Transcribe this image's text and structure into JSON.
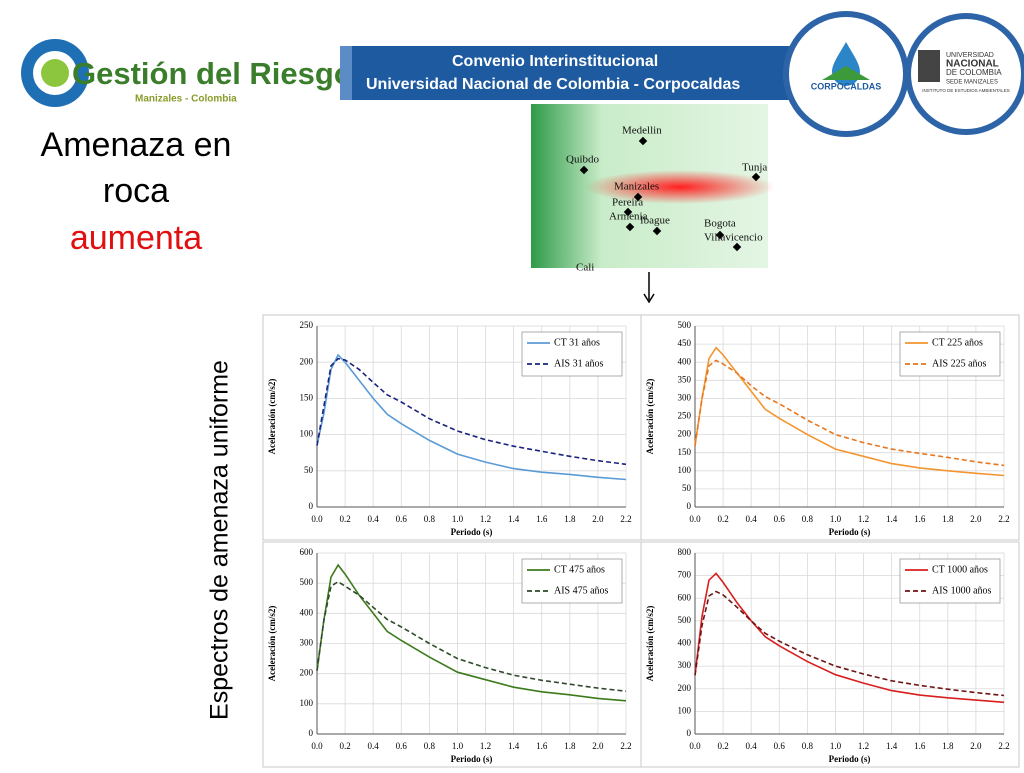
{
  "header": {
    "logo_title": "Gestión del Riesgo",
    "logo_subtitle": "Manizales - Colombia",
    "banner_line1": "Convenio Interinstitucional",
    "banner_line2": "Universidad Nacional de Colombia - Corpocaldas",
    "corpocaldas": "CORPOCALDAS",
    "unal_line1": "UNIVERSIDAD",
    "unal_line2": "NACIONAL",
    "unal_line3": "DE COLOMBIA",
    "unal_line4": "SEDE MANIZALES",
    "unal_line5": "INSTITUTO DE ESTUDIOS AMBIENTALES"
  },
  "slide": {
    "heading_line1": "Amenaza en",
    "heading_line2": "roca",
    "heading_line3": "aumenta",
    "vertical_label": "Espectros de amenaza uniforme"
  },
  "map": {
    "labels": [
      "Medellin",
      "Quibdo",
      "Tunja",
      "Manizales",
      "Pereira",
      "Armenia",
      "Ibague",
      "Bogota",
      "Villavicencio",
      "Cali"
    ]
  },
  "chart_data": [
    {
      "type": "line",
      "xlabel": "Periodo (s)",
      "ylabel": "Aceleración (cm/s2)",
      "x": [
        0,
        0.05,
        0.1,
        0.15,
        0.2,
        0.3,
        0.4,
        0.5,
        0.6,
        0.8,
        1.0,
        1.2,
        1.4,
        1.6,
        1.8,
        2.0,
        2.2
      ],
      "series": [
        {
          "name": "CT 31 años",
          "color": "#5b9bd5",
          "linestyle": "solid",
          "values": [
            85,
            130,
            190,
            210,
            200,
            175,
            150,
            128,
            115,
            92,
            73,
            62,
            53,
            48,
            45,
            41,
            38
          ]
        },
        {
          "name": "AIS 31 años",
          "color": "#1a237e",
          "linestyle": "dashed",
          "values": [
            85,
            140,
            195,
            205,
            203,
            190,
            172,
            155,
            145,
            122,
            105,
            93,
            84,
            77,
            70,
            64,
            59
          ]
        }
      ],
      "xlim": [
        0,
        2.2
      ],
      "xticks": [
        {
          "value": 0,
          "label": "0.0"
        },
        0.2,
        0.4,
        0.6,
        0.8,
        {
          "value": 1,
          "label": "1.0"
        },
        1.2,
        1.4,
        1.6,
        1.8,
        {
          "value": 2,
          "label": "2.0"
        },
        2.2
      ],
      "ylim": [
        0,
        250
      ],
      "yticks": [
        0,
        50,
        100,
        150,
        200,
        250
      ],
      "grid": true,
      "legend": "upper right"
    },
    {
      "type": "line",
      "xlabel": "Periodo (s)",
      "ylabel": "Aceleración (cm/s2)",
      "x": [
        0,
        0.05,
        0.1,
        0.15,
        0.2,
        0.3,
        0.4,
        0.5,
        0.6,
        0.8,
        1.0,
        1.2,
        1.4,
        1.6,
        1.8,
        2.0,
        2.2
      ],
      "series": [
        {
          "name": "CT 225 años",
          "color": "#f39530",
          "linestyle": "solid",
          "values": [
            170,
            300,
            410,
            440,
            420,
            370,
            320,
            270,
            245,
            200,
            160,
            140,
            120,
            108,
            100,
            93,
            87
          ]
        },
        {
          "name": "AIS 225 años",
          "color": "#e8761e",
          "linestyle": "dashed",
          "values": [
            170,
            300,
            390,
            405,
            395,
            370,
            335,
            305,
            285,
            240,
            200,
            178,
            160,
            148,
            137,
            125,
            115
          ]
        }
      ],
      "xlim": [
        0,
        2.2
      ],
      "xticks": [
        {
          "value": 0,
          "label": "0.0"
        },
        0.2,
        0.4,
        0.6,
        0.8,
        {
          "value": 1,
          "label": "1.0"
        },
        1.2,
        1.4,
        1.6,
        1.8,
        {
          "value": 2,
          "label": "2.0"
        },
        2.2
      ],
      "ylim": [
        0,
        500
      ],
      "yticks": [
        0,
        50,
        100,
        150,
        200,
        250,
        300,
        350,
        400,
        450,
        500
      ],
      "grid": true,
      "legend": "upper right"
    },
    {
      "type": "line",
      "xlabel": "Periodo (s)",
      "ylabel": "Aceleración (cm/s2)",
      "x": [
        0,
        0.05,
        0.1,
        0.15,
        0.2,
        0.3,
        0.4,
        0.5,
        0.6,
        0.8,
        1.0,
        1.2,
        1.4,
        1.6,
        1.8,
        2.0,
        2.2
      ],
      "series": [
        {
          "name": "CT 475 años",
          "color": "#3d7a1c",
          "linestyle": "solid",
          "values": [
            210,
            380,
            520,
            560,
            530,
            460,
            400,
            340,
            310,
            255,
            205,
            180,
            155,
            140,
            130,
            118,
            110
          ]
        },
        {
          "name": "AIS 475 años",
          "color": "#2e4a2a",
          "linestyle": "dashed",
          "values": [
            210,
            380,
            490,
            505,
            490,
            460,
            420,
            380,
            355,
            300,
            250,
            220,
            195,
            178,
            165,
            152,
            142
          ]
        }
      ],
      "xlim": [
        0,
        2.2
      ],
      "xticks": [
        {
          "value": 0,
          "label": "0.0"
        },
        0.2,
        0.4,
        0.6,
        0.8,
        {
          "value": 1,
          "label": "1.0"
        },
        1.2,
        1.4,
        1.6,
        1.8,
        {
          "value": 2,
          "label": "2.0"
        },
        2.2
      ],
      "ylim": [
        0,
        600
      ],
      "yticks": [
        0,
        100,
        200,
        300,
        400,
        500,
        600
      ],
      "grid": true,
      "legend": "upper right"
    },
    {
      "type": "line",
      "xlabel": "Periodo (s)",
      "ylabel": "Aceleración (cm/s2)",
      "x": [
        0,
        0.05,
        0.1,
        0.15,
        0.2,
        0.3,
        0.4,
        0.5,
        0.6,
        0.8,
        1.0,
        1.2,
        1.4,
        1.6,
        1.8,
        2.0,
        2.2
      ],
      "series": [
        {
          "name": "CT 1000 años",
          "color": "#d81e1e",
          "linestyle": "solid",
          "values": [
            260,
            520,
            680,
            710,
            670,
            580,
            500,
            430,
            390,
            320,
            262,
            225,
            192,
            172,
            160,
            150,
            140
          ]
        },
        {
          "name": "AIS 1000 años",
          "color": "#6e1414",
          "linestyle": "dashed",
          "values": [
            260,
            480,
            610,
            630,
            615,
            560,
            500,
            445,
            410,
            350,
            300,
            265,
            235,
            215,
            198,
            183,
            170
          ]
        }
      ],
      "xlim": [
        0,
        2.2
      ],
      "xticks": [
        {
          "value": 0,
          "label": "0.0"
        },
        0.2,
        0.4,
        0.6,
        0.8,
        {
          "value": 1,
          "label": "1.0"
        },
        1.2,
        1.4,
        1.6,
        1.8,
        {
          "value": 2,
          "label": "2.0"
        },
        2.2
      ],
      "ylim": [
        0,
        800
      ],
      "yticks": [
        0,
        100,
        200,
        300,
        400,
        500,
        600,
        700,
        800
      ],
      "grid": true,
      "legend": "upper right"
    }
  ]
}
